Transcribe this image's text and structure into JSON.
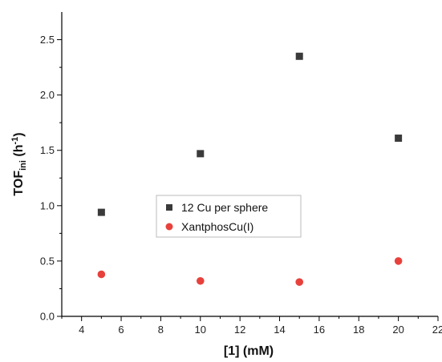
{
  "chart_data": {
    "type": "scatter",
    "xlabel": "[1] (mM)",
    "ylabel": {
      "main": "TOF",
      "sub": "ini",
      "unit_open": " (h",
      "sup": "-1",
      "unit_close": ")"
    },
    "xlim": [
      3,
      22
    ],
    "ylim": [
      0,
      2.75
    ],
    "xticks": [
      4,
      6,
      8,
      10,
      12,
      14,
      16,
      18,
      20,
      22
    ],
    "yticks": [
      0.0,
      0.5,
      1.0,
      1.5,
      2.0,
      2.5
    ],
    "xtick_labels": [
      "4",
      "6",
      "8",
      "10",
      "12",
      "14",
      "16",
      "18",
      "20",
      "22"
    ],
    "ytick_labels": [
      "0.0",
      "0.5",
      "1.0",
      "1.5",
      "2.0",
      "2.5"
    ],
    "grid": false,
    "legend_position": "center",
    "series": [
      {
        "name": "12 Cu per sphere",
        "marker": "square",
        "color": "#3a3a3a",
        "x": [
          5,
          10,
          15,
          20
        ],
        "y": [
          0.94,
          1.47,
          2.35,
          1.61
        ]
      },
      {
        "name": "XantphosCu(I)",
        "marker": "circle",
        "color": "#e8413c",
        "x": [
          5,
          10,
          15,
          20
        ],
        "y": [
          0.38,
          0.32,
          0.31,
          0.5
        ]
      }
    ]
  }
}
